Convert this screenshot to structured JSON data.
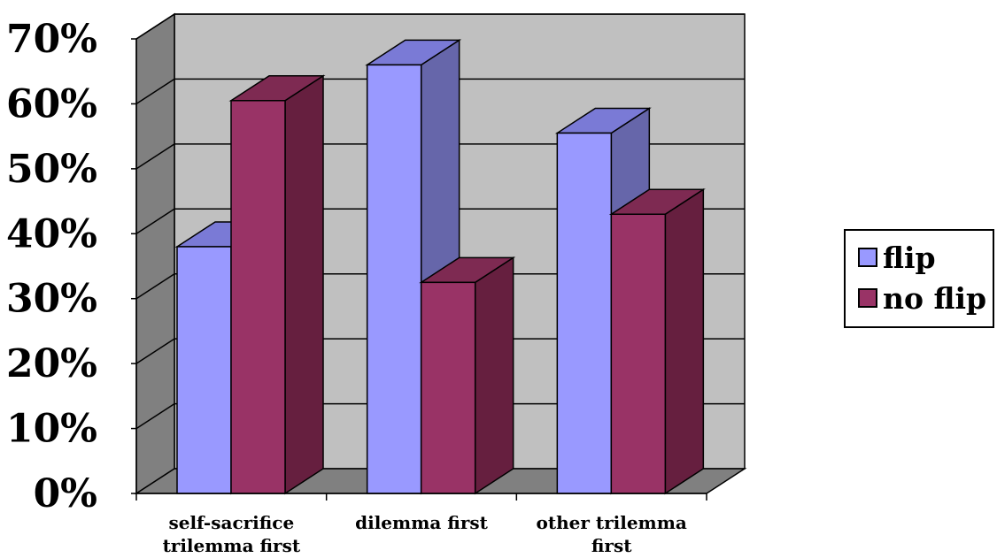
{
  "chart_data": {
    "type": "bar",
    "style": "3d-clustered-column",
    "categories": [
      [
        "self-sacrifice",
        "trilemma first"
      ],
      [
        "dilemma first"
      ],
      [
        "other trilemma",
        "first"
      ]
    ],
    "series": [
      {
        "name": "flip",
        "values": [
          38,
          66,
          55.5
        ],
        "color": "#9999FF",
        "side_color": "#6666AA",
        "top_color": "#7A7AD6"
      },
      {
        "name": "no flip",
        "values": [
          60.5,
          32.5,
          43
        ],
        "color": "#993366",
        "side_color": "#661F3F",
        "top_color": "#7E2A52"
      }
    ],
    "ylim": [
      0,
      70
    ],
    "y_ticks": [
      "0%",
      "10%",
      "20%",
      "30%",
      "40%",
      "50%",
      "60%",
      "70%"
    ],
    "grid": true,
    "legend_position": "right",
    "wall_color": "#C0C0C0",
    "side_wall_color": "#808080"
  }
}
